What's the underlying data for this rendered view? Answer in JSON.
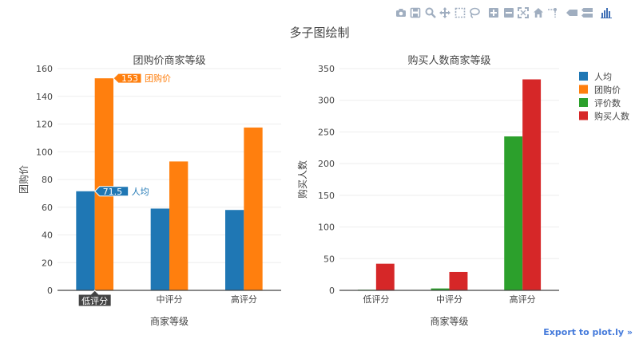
{
  "figure_title": "多子图绘制",
  "export_label": "Export to plot.ly »",
  "colors": {
    "series_人均": "#1f77b4",
    "series_团购价": "#ff7f0e",
    "series_评价数": "#2ca02c",
    "series_购买人数": "#d62728",
    "toolbar_icon": "#a0aec0",
    "toolbar_icon_active": "#3f6fb5",
    "export_link": "#447adb"
  },
  "toolbar": [
    {
      "name": "camera-icon",
      "label": "Download plot as a png"
    },
    {
      "name": "save-icon",
      "label": "Save and edit plot in cloud"
    },
    {
      "name": "zoom-icon",
      "label": "Zoom"
    },
    {
      "name": "pan-icon",
      "label": "Pan"
    },
    {
      "name": "box-select-icon",
      "label": "Box Select"
    },
    {
      "name": "lasso-select-icon",
      "label": "Lasso Select"
    },
    {
      "name": "zoom-in-icon",
      "label": "Zoom in"
    },
    {
      "name": "zoom-out-icon",
      "label": "Zoom out"
    },
    {
      "name": "autoscale-icon",
      "label": "Autoscale"
    },
    {
      "name": "reset-axes-icon",
      "label": "Reset axes"
    },
    {
      "name": "spike-lines-icon",
      "label": "Toggle Spike Lines"
    },
    {
      "name": "hover-closest-icon",
      "label": "Show closest data on hover"
    },
    {
      "name": "hover-compare-icon",
      "label": "Compare data on hover"
    },
    {
      "name": "plotly-logo-icon",
      "label": "Produced with Plotly"
    }
  ],
  "legend": {
    "position": "right",
    "items": [
      "人均",
      "团购价",
      "评价数",
      "购买人数"
    ]
  },
  "chart_data": [
    {
      "type": "bar",
      "title": "团购价商家等级",
      "xlabel": "商家等级",
      "ylabel": "团购价",
      "categories": [
        "低评分",
        "中评分",
        "高评分"
      ],
      "ylim": [
        0,
        160
      ],
      "yticks": [
        0,
        20,
        40,
        60,
        80,
        100,
        120,
        140,
        160
      ],
      "grid": true,
      "series": [
        {
          "name": "人均",
          "values": [
            71.5,
            59,
            58
          ]
        },
        {
          "name": "团购价",
          "values": [
            153,
            93,
            117.5
          ]
        }
      ],
      "hover": {
        "category": "低评分",
        "labels": [
          {
            "series": "团购价",
            "value": 153,
            "text": "153",
            "name": "团购价"
          },
          {
            "series": "人均",
            "value": 71.5,
            "text": "71.5",
            "name": "人均"
          }
        ]
      }
    },
    {
      "type": "bar",
      "title": "购买人数商家等级",
      "xlabel": "商家等级",
      "ylabel": "购买人数",
      "categories": [
        "低评分",
        "中评分",
        "高评分"
      ],
      "ylim": [
        0,
        350
      ],
      "yticks": [
        0,
        50,
        100,
        150,
        200,
        250,
        300,
        350
      ],
      "grid": true,
      "series": [
        {
          "name": "评价数",
          "values": [
            1,
            3,
            243
          ]
        },
        {
          "name": "购买人数",
          "values": [
            42,
            29,
            333
          ]
        }
      ]
    }
  ]
}
